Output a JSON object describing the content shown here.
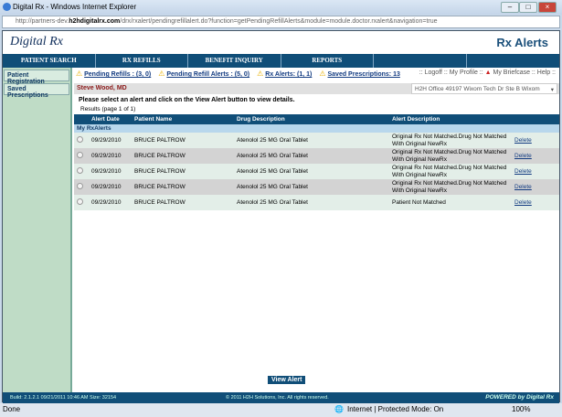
{
  "window": {
    "title": "Digital Rx - Windows Internet Explorer",
    "url_prefix": "http://partners-dev.",
    "url_domain": "h2hdigitalrx.com",
    "url_rest": "/drx/rxalert/pendingrefillalert.do?function=getPendingRefillAlerts&module=module.doctor.rxalert&navigation=true"
  },
  "header": {
    "logo": "Digital Rx",
    "page_title": "Rx Alerts"
  },
  "nav": [
    "PATIENT SEARCH",
    "Rx Refills",
    "Benefit Inquiry",
    "Reports",
    "",
    ""
  ],
  "sidebar": [
    "Patient Registration",
    "Saved Prescriptions"
  ],
  "alerts": [
    "Pending Refills : (3, 0)",
    "Pending Refill Alerts : (5, 0)",
    "Rx Alerts: (1, 1)",
    "Saved Prescriptions: 13"
  ],
  "toplinks": {
    "logoff": ":: Logoff :: My Profile ::",
    "briefcase": "My Briefcase :: Help ::"
  },
  "doctor": "Steve Wood, MD",
  "office": "H2H Office 49197 Wixom Tech Dr Ste B Wixom",
  "instruction": "Please select an alert and click on the View Alert button to view details.",
  "results": "Results (page 1 of 1)",
  "table": {
    "headers": [
      "",
      "Alert Date",
      "Patient Name",
      "Drug Description",
      "Alert Description",
      ""
    ],
    "group": "My RxAlerts",
    "rows": [
      {
        "date": "09/29/2010",
        "patient": "BRUCE  PALTROW",
        "drug": "Atenolol 25 MG Oral Tablet",
        "alert": "Original Rx Not Matched.Drug Not Matched With Original NewRx",
        "action": "Delete"
      },
      {
        "date": "09/29/2010",
        "patient": "BRUCE  PALTROW",
        "drug": "Atenolol 25 MG Oral Tablet",
        "alert": "Original Rx Not Matched.Drug Not Matched With Original NewRx",
        "action": "Delete"
      },
      {
        "date": "09/29/2010",
        "patient": "BRUCE  PALTROW",
        "drug": "Atenolol 25 MG Oral Tablet",
        "alert": "Original Rx Not Matched.Drug Not Matched With Original NewRx",
        "action": "Delete"
      },
      {
        "date": "09/29/2010",
        "patient": "BRUCE  PALTROW",
        "drug": "Atenolol 25 MG Oral Tablet",
        "alert": "Original Rx Not Matched.Drug Not Matched With Original NewRx",
        "action": "Delete"
      },
      {
        "date": "09/29/2010",
        "patient": "BRUCE  PALTROW",
        "drug": "Atenolol 25 MG Oral Tablet",
        "alert": "Patient Not Matched",
        "action": "Delete"
      }
    ]
  },
  "view_alert": "View Alert",
  "footer": {
    "build": "Build: 2.1.2.1 09/21/2011 10:46 AM Size: 32154",
    "copyright": "© 2011 H2H Solutions, Inc. All rights reserved.",
    "powered": "POWERED by Digital Rx"
  },
  "status": {
    "left": "Done",
    "zone": "Internet | Protected Mode: On",
    "zoom": "100%"
  }
}
